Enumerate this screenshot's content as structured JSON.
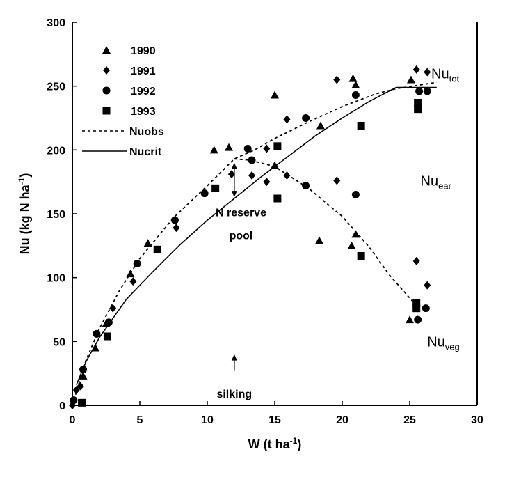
{
  "chart_data": {
    "type": "scatter",
    "xlabel": "W (t ha",
    "xlabel_sup": "-1",
    "xlabel_end": ")",
    "ylabel": "Nu (kg N  ha",
    "ylabel_sup": "-1",
    "ylabel_end": ")",
    "xlim": [
      0,
      30
    ],
    "ylim": [
      0,
      300
    ],
    "xticks": [
      0,
      5,
      10,
      15,
      20,
      25,
      30
    ],
    "yticks": [
      0,
      50,
      100,
      150,
      200,
      250,
      300
    ],
    "grid": false,
    "legend_placement": "top-left",
    "series": [
      {
        "name": "1990",
        "marker": "triangle",
        "points": [
          [
            0.8,
            23
          ],
          [
            1.7,
            45
          ],
          [
            2.5,
            64
          ],
          [
            4.3,
            103
          ],
          [
            5.6,
            127
          ],
          [
            10.5,
            200
          ],
          [
            11.6,
            202
          ],
          [
            15.0,
            243
          ],
          [
            15.0,
            188
          ],
          [
            18.4,
            219
          ],
          [
            20.8,
            256
          ],
          [
            21.0,
            251
          ],
          [
            25.1,
            255
          ],
          [
            18.3,
            129
          ],
          [
            21.0,
            134
          ],
          [
            20.7,
            125
          ],
          [
            25.0,
            67
          ]
        ]
      },
      {
        "name": "1991",
        "marker": "diamond",
        "points": [
          [
            0,
            0
          ],
          [
            0.3,
            12
          ],
          [
            0.6,
            15
          ],
          [
            3.0,
            76
          ],
          [
            4.5,
            97
          ],
          [
            7.7,
            139
          ],
          [
            11.8,
            181
          ],
          [
            13.3,
            180
          ],
          [
            14.4,
            175
          ],
          [
            14.4,
            201
          ],
          [
            15.9,
            224
          ],
          [
            15.9,
            180
          ],
          [
            19.6,
            255
          ],
          [
            19.6,
            176
          ],
          [
            25.5,
            263
          ],
          [
            26.3,
            261
          ],
          [
            25.5,
            113
          ],
          [
            26.3,
            94
          ]
        ]
      },
      {
        "name": "1992",
        "marker": "circle",
        "points": [
          [
            0.1,
            4
          ],
          [
            0.8,
            28
          ],
          [
            1.8,
            56
          ],
          [
            2.7,
            65
          ],
          [
            4.8,
            111
          ],
          [
            7.6,
            145
          ],
          [
            9.8,
            166
          ],
          [
            13.0,
            201
          ],
          [
            13.3,
            192
          ],
          [
            17.3,
            172
          ],
          [
            17.3,
            225
          ],
          [
            21.0,
            243
          ],
          [
            21.0,
            165
          ],
          [
            25.7,
            246
          ],
          [
            26.3,
            246
          ],
          [
            26.2,
            76
          ],
          [
            25.6,
            67
          ]
        ]
      },
      {
        "name": "1993",
        "marker": "square",
        "points": [
          [
            0.7,
            2
          ],
          [
            2.6,
            54
          ],
          [
            6.3,
            122
          ],
          [
            10.6,
            170
          ],
          [
            15.2,
            203
          ],
          [
            15.2,
            162
          ],
          [
            21.4,
            219
          ],
          [
            25.6,
            237
          ],
          [
            25.6,
            232
          ],
          [
            25.5,
            80
          ],
          [
            25.5,
            76
          ],
          [
            21.4,
            117
          ]
        ]
      }
    ],
    "lines": [
      {
        "name": "Nuobs",
        "style": "dotted",
        "points": [
          [
            0,
            0
          ],
          [
            1,
            35
          ],
          [
            2,
            60
          ],
          [
            3.5,
            90
          ],
          [
            5,
            115
          ],
          [
            7.5,
            147
          ],
          [
            10,
            172
          ],
          [
            12,
            193
          ],
          [
            13.5,
            200
          ],
          [
            15,
            209
          ],
          [
            17.5,
            222
          ],
          [
            20,
            234
          ],
          [
            22.5,
            244
          ],
          [
            24,
            248
          ],
          [
            27,
            253
          ]
        ]
      },
      {
        "name": "Nucrit",
        "style": "solid",
        "formula": "34*W^0.63 up to W=24, then 249",
        "points": [
          [
            0.3,
            16
          ],
          [
            1,
            34
          ],
          [
            2,
            53
          ],
          [
            4,
            83
          ],
          [
            6,
            105
          ],
          [
            8,
            126
          ],
          [
            10,
            145
          ],
          [
            12,
            162
          ],
          [
            14,
            179
          ],
          [
            16,
            195
          ],
          [
            18,
            211
          ],
          [
            20,
            225
          ],
          [
            22,
            238
          ],
          [
            24,
            249
          ],
          [
            27,
            249
          ]
        ]
      },
      {
        "style": "dotted",
        "points": [
          [
            12,
            193
          ],
          [
            13.2,
            192
          ],
          [
            15,
            187
          ],
          [
            17.5,
            170
          ],
          [
            20,
            148
          ],
          [
            22,
            124
          ],
          [
            23.5,
            102
          ],
          [
            25.5,
            78
          ]
        ]
      }
    ],
    "annotations": [
      {
        "text": "Nu",
        "sub": "tot",
        "x": 26.6,
        "y": 256
      },
      {
        "text": "Nu",
        "sub": "ear",
        "x": 25.8,
        "y": 172
      },
      {
        "text": "Nu",
        "sub": "veg",
        "x": 26.3,
        "y": 46
      },
      {
        "text": "N reserve",
        "x": 12.5,
        "y": 148
      },
      {
        "text": "pool",
        "x": 12.5,
        "y": 130
      },
      {
        "text": "silking",
        "x": 12.0,
        "y": 6
      }
    ],
    "reserve_arrow": {
      "x": 12.0,
      "y_from": 163,
      "y_to": 190
    },
    "silking_arrow": {
      "x": 12.0,
      "y_from": 27,
      "y_to": 40
    }
  }
}
